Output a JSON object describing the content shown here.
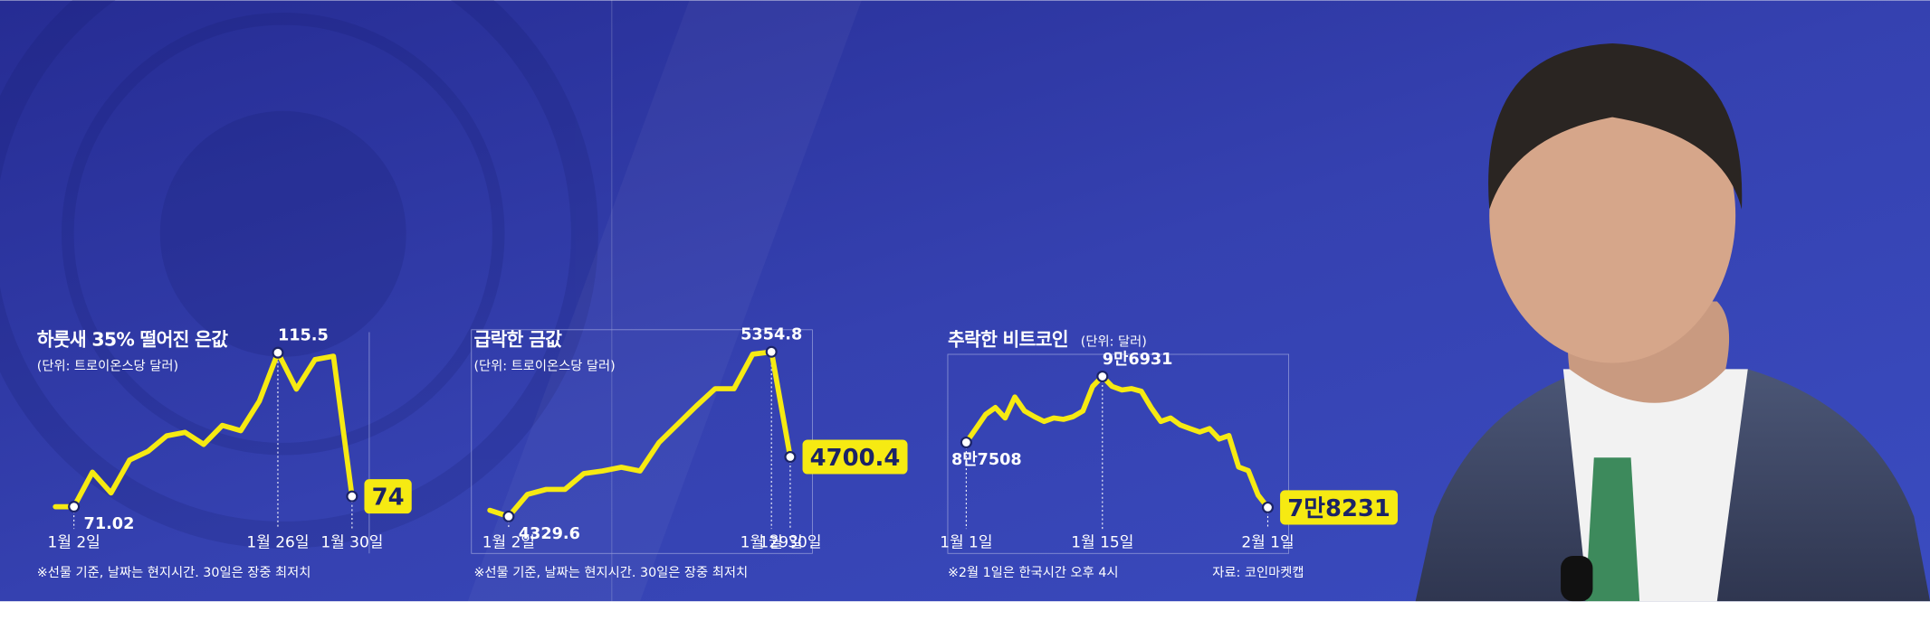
{
  "chart_data": [
    {
      "type": "line",
      "title": "하룻새 35% 떨어진 은값",
      "subtitle": "(단위: 트로이온스당 달러)",
      "categories": [
        null,
        "1월 2일",
        null,
        null,
        null,
        null,
        null,
        null,
        null,
        null,
        null,
        null,
        "1월 26일",
        null,
        null,
        null,
        "1월 30일"
      ],
      "values": [
        71,
        71.02,
        81,
        75,
        84.5,
        87,
        91.5,
        92.5,
        89,
        94.5,
        93,
        101.5,
        115.5,
        105,
        113.5,
        114.5,
        74
      ],
      "value_labels": [
        null,
        "71.02",
        null,
        null,
        null,
        null,
        null,
        null,
        null,
        null,
        null,
        null,
        "115.5",
        null,
        null,
        null,
        "74"
      ],
      "color": "#f6ea12",
      "ylim": [
        60,
        120
      ],
      "note": "※선물 기준, 날짜는 현지시간. 30일은 장중 최저치"
    },
    {
      "type": "line",
      "title": "급락한 금값",
      "subtitle": "(단위: 트로이온스당 달러)",
      "categories": [
        null,
        "1월 2일",
        null,
        null,
        null,
        null,
        null,
        null,
        null,
        null,
        null,
        null,
        null,
        null,
        null,
        "1월 29일",
        "1월 30일"
      ],
      "values": [
        4368,
        4329.6,
        4467,
        4498,
        4498,
        4597,
        4613,
        4636,
        4613,
        4789,
        4903,
        5018,
        5125,
        5125,
        5340,
        5354.8,
        4700.4
      ],
      "value_labels": [
        null,
        "4329.6",
        null,
        null,
        null,
        null,
        null,
        null,
        null,
        null,
        null,
        null,
        null,
        null,
        null,
        "5354.8",
        "4700.4"
      ],
      "color": "#f6ea12",
      "ylim": [
        4000,
        5500
      ],
      "note": "※선물 기준, 날짜는 현지시간. 30일은 장중 최저치"
    },
    {
      "type": "line",
      "title": "추락한 비트코인",
      "subtitle": "(단위: 달러)",
      "categories": [
        "1월 1일",
        null,
        null,
        null,
        null,
        null,
        null,
        null,
        null,
        null,
        null,
        null,
        null,
        null,
        "1월 15일",
        null,
        null,
        null,
        null,
        null,
        null,
        null,
        null,
        null,
        null,
        null,
        null,
        null,
        null,
        null,
        null,
        "2월 1일"
      ],
      "values": [
        87508,
        89500,
        91500,
        92500,
        91000,
        94000,
        92000,
        91200,
        90500,
        91000,
        90800,
        91200,
        92000,
        95500,
        96931,
        95500,
        95000,
        95200,
        94800,
        92500,
        90500,
        91000,
        90000,
        89500,
        89000,
        89500,
        88000,
        88500,
        84000,
        83500,
        80000,
        78231
      ],
      "value_labels": [
        "8만7508",
        null,
        null,
        null,
        null,
        null,
        null,
        null,
        null,
        null,
        null,
        null,
        null,
        null,
        "9만6931",
        null,
        null,
        null,
        null,
        null,
        null,
        null,
        null,
        null,
        null,
        null,
        null,
        null,
        null,
        null,
        null,
        "7만8231"
      ],
      "color": "#f6ea12",
      "ylim": [
        75000,
        100000
      ],
      "note": "※2월 1일은 한국시간 오후 4시",
      "source": "자료: 코인마켓캡"
    }
  ]
}
